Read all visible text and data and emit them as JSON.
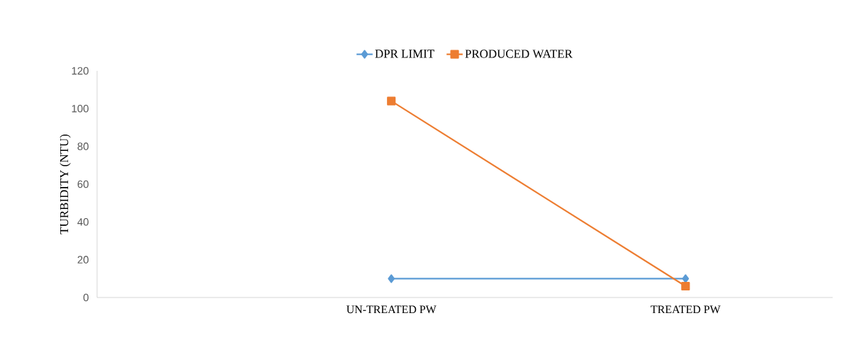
{
  "chart_data": {
    "type": "line",
    "ylabel": "TURBIDITY (NTU)",
    "categories": [
      "UN-TREATED PW",
      "TREATED PW"
    ],
    "series": [
      {
        "name": "DPR LIMIT",
        "color": "#5b9bd5",
        "marker": "diamond",
        "values": [
          10,
          10
        ]
      },
      {
        "name": "PRODUCED WATER",
        "color": "#ed7d31",
        "marker": "square",
        "values": [
          104,
          6
        ]
      }
    ],
    "ylim": [
      0,
      120
    ],
    "yticks": [
      0,
      20,
      40,
      60,
      80,
      100,
      120
    ],
    "legend": "top",
    "grid": false
  }
}
